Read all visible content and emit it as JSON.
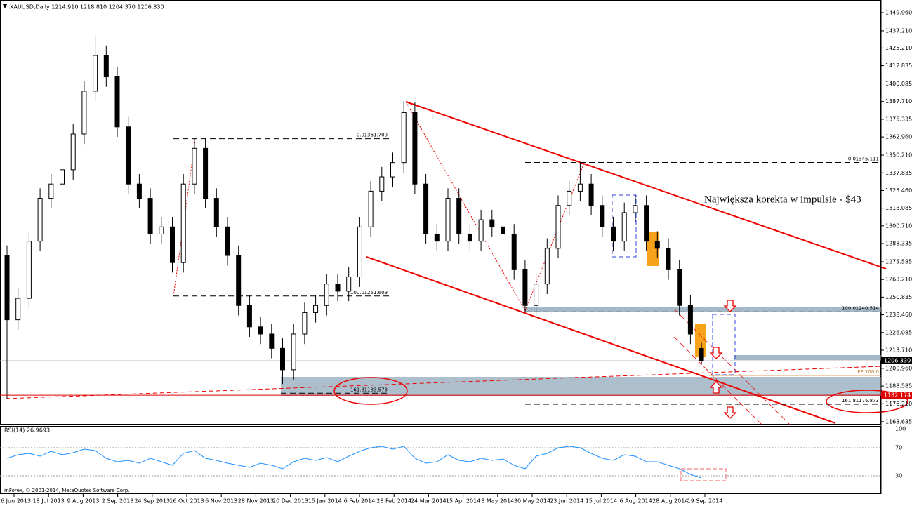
{
  "chart_data": [
    {
      "type": "candlestick",
      "header": "XAUUSD,Daily  1214.910 1218.810 1204.370 1206.330",
      "open": [
        1280,
        1235,
        1250,
        1290,
        1320,
        1330,
        1340,
        1365,
        1395,
        1420,
        1405,
        1370,
        1330,
        1320,
        1295,
        1300,
        1275,
        1330,
        1355,
        1320,
        1300,
        1280,
        1245,
        1230,
        1225,
        1215,
        1200,
        1225,
        1240,
        1245,
        1260,
        1255,
        1265,
        1300,
        1325,
        1335,
        1345,
        1380,
        1330,
        1295,
        1290,
        1320,
        1295,
        1290,
        1305,
        1300,
        1295,
        1270,
        1245,
        1260,
        1285,
        1315,
        1325,
        1330,
        1315,
        1300,
        1290,
        1310,
        1315,
        1290,
        1285,
        1270,
        1245,
        1214.91
      ],
      "high": [
        1287,
        1257,
        1297,
        1327,
        1337,
        1347,
        1372,
        1402,
        1433,
        1427,
        1412,
        1377,
        1337,
        1327,
        1307,
        1307,
        1337,
        1362,
        1362,
        1327,
        1307,
        1287,
        1252,
        1237,
        1232,
        1222,
        1232,
        1247,
        1252,
        1267,
        1267,
        1272,
        1307,
        1332,
        1342,
        1352,
        1388,
        1387,
        1337,
        1302,
        1327,
        1327,
        1302,
        1312,
        1312,
        1307,
        1302,
        1277,
        1267,
        1292,
        1322,
        1332,
        1345,
        1337,
        1322,
        1307,
        1317,
        1322,
        1322,
        1297,
        1292,
        1277,
        1252,
        1218.81
      ],
      "low": [
        1180,
        1228,
        1243,
        1283,
        1313,
        1323,
        1333,
        1358,
        1388,
        1398,
        1363,
        1323,
        1313,
        1288,
        1288,
        1268,
        1268,
        1323,
        1313,
        1293,
        1273,
        1238,
        1223,
        1218,
        1208,
        1190,
        1193,
        1218,
        1233,
        1238,
        1248,
        1248,
        1258,
        1293,
        1318,
        1328,
        1338,
        1323,
        1288,
        1283,
        1283,
        1288,
        1283,
        1283,
        1293,
        1288,
        1263,
        1240,
        1238,
        1253,
        1278,
        1308,
        1318,
        1308,
        1293,
        1283,
        1283,
        1303,
        1283,
        1278,
        1263,
        1238,
        1218,
        1204.37
      ],
      "close": [
        1235,
        1250,
        1290,
        1320,
        1330,
        1340,
        1365,
        1395,
        1420,
        1405,
        1370,
        1330,
        1320,
        1295,
        1300,
        1275,
        1330,
        1355,
        1320,
        1300,
        1280,
        1245,
        1230,
        1225,
        1215,
        1200,
        1225,
        1240,
        1245,
        1260,
        1255,
        1265,
        1300,
        1325,
        1335,
        1345,
        1380,
        1330,
        1295,
        1290,
        1320,
        1295,
        1290,
        1305,
        1300,
        1295,
        1270,
        1245,
        1260,
        1285,
        1315,
        1325,
        1330,
        1315,
        1300,
        1290,
        1310,
        1315,
        1290,
        1285,
        1270,
        1245,
        1225,
        1206.33
      ],
      "ylim": [
        1161.62,
        1456.35
      ],
      "yticks": [
        {
          "value": 1449.96,
          "label": "1449.960"
        },
        {
          "value": 1437.21,
          "label": "1437.210"
        },
        {
          "value": 1425.21,
          "label": "1425.210"
        },
        {
          "value": 1412.835,
          "label": "1412.835"
        },
        {
          "value": 1400.085,
          "label": "1400.085"
        },
        {
          "value": 1387.71,
          "label": "1387.710"
        },
        {
          "value": 1375.335,
          "label": "1375.335"
        },
        {
          "value": 1362.96,
          "label": "1362.960"
        },
        {
          "value": 1350.21,
          "label": "1350.210"
        },
        {
          "value": 1337.835,
          "label": "1337.835"
        },
        {
          "value": 1325.46,
          "label": "1325.460"
        },
        {
          "value": 1313.085,
          "label": "1313.085"
        },
        {
          "value": 1300.71,
          "label": "1300.710"
        },
        {
          "value": 1288.335,
          "label": "1288.335"
        },
        {
          "value": 1275.585,
          "label": "1275.585"
        },
        {
          "value": 1263.21,
          "label": "1263.210"
        },
        {
          "value": 1250.835,
          "label": "1250.835"
        },
        {
          "value": 1238.46,
          "label": "1238.460"
        },
        {
          "value": 1226.085,
          "label": "1226.085"
        },
        {
          "value": 1213.71,
          "label": "1213.710"
        },
        {
          "value": 1200.96,
          "label": "1200.960"
        },
        {
          "value": 1188.585,
          "label": "1188.585"
        },
        {
          "value": 1176.21,
          "label": "1176.210"
        },
        {
          "value": 1163.635,
          "label": "1163.635"
        }
      ],
      "xticks": [
        "26 Jun 2013",
        "18 Jul 2013",
        "9 Aug 2013",
        "2 Sep 2013",
        "24 Sep 2013",
        "16 Oct 2013",
        "6 Nov 2013",
        "28 Nov 2013",
        "20 Dec 2013",
        "15 Jan 2014",
        "6 Feb 2014",
        "28 Feb 2014",
        "24 Mar 2014",
        "15 Apr 2014",
        "8 May 2014",
        "30 May 2014",
        "23 Jun 2014",
        "15 Jul 2014",
        "6 Aug 2014",
        "28 Aug 2014",
        "19 Sep 2014"
      ],
      "levels": [
        {
          "level": "0.0",
          "price": 1361.7,
          "price_label": "1361.700"
        },
        {
          "level": "100.0",
          "price": 1251.609,
          "price_label": "1251.609"
        },
        {
          "level": "161.8",
          "price": 1183.573,
          "price_label": "1183.573"
        },
        {
          "level": "0.0",
          "price": 1345.111,
          "price_label": "1345.111"
        },
        {
          "level": "100.0",
          "price": 1240.514,
          "price_label": "1240.514"
        },
        {
          "level": "161.8",
          "price": 1175.873,
          "price_label": "1175.873"
        }
      ],
      "price_tags": [
        {
          "value": 1206.33,
          "label": "1206.330",
          "color": "#000000"
        },
        {
          "value": 1182.174,
          "label": "1182.174",
          "color": "#e00000"
        }
      ],
      "fe_label": "FE 100.0",
      "note": "Największa korekta w impulsie - $43",
      "footer": "mForex, © 2001-2014, MetaQuotes Software Corp."
    },
    {
      "type": "line",
      "title": "RSI(14) 26.9693",
      "color": "#1e90ff",
      "values": [
        55,
        60,
        62,
        58,
        65,
        60,
        63,
        68,
        66,
        55,
        50,
        52,
        48,
        55,
        50,
        45,
        62,
        66,
        55,
        52,
        48,
        45,
        42,
        48,
        45,
        40,
        50,
        55,
        52,
        56,
        50,
        58,
        65,
        70,
        72,
        68,
        72,
        55,
        48,
        50,
        60,
        52,
        50,
        55,
        52,
        54,
        45,
        40,
        58,
        62,
        70,
        72,
        70,
        62,
        55,
        52,
        60,
        58,
        50,
        50,
        45,
        40,
        32,
        27
      ],
      "ylim": [
        5,
        100
      ],
      "yticks": [
        30,
        70,
        100
      ]
    }
  ]
}
